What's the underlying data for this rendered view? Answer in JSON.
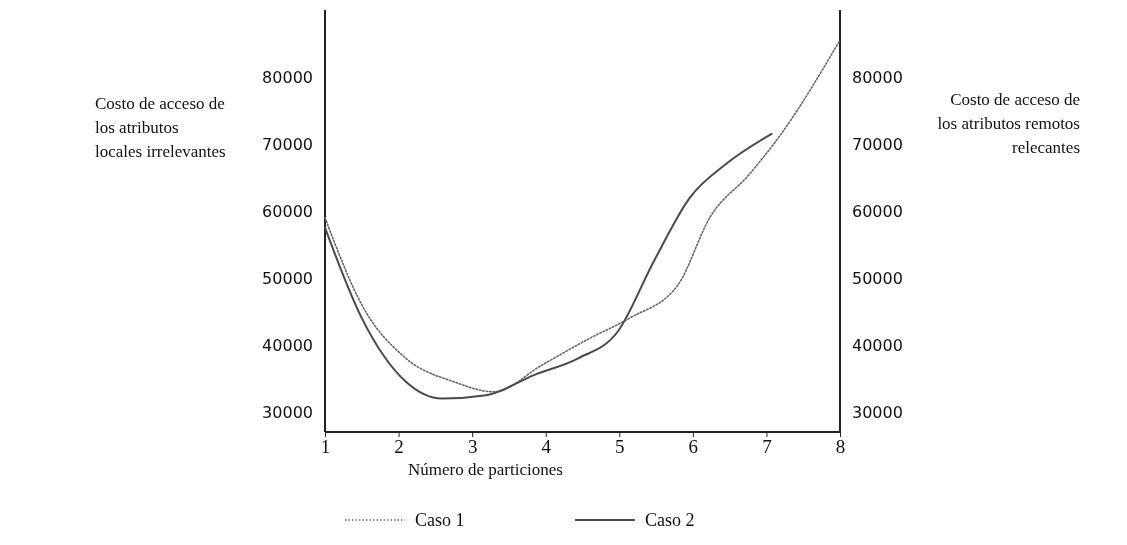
{
  "chart_data": {
    "type": "line",
    "xlabel": "Número de particiones",
    "ylabel": "Costo de acceso de los atributos locales irrelevantes",
    "y2label": "Costo de acceso de los atributos remotos relecantes",
    "xlim": [
      1,
      8
    ],
    "xticks": [
      1,
      2,
      3,
      4,
      5,
      6,
      7,
      8
    ],
    "ylim": [
      27000,
      90000
    ],
    "yticks": [
      30000,
      40000,
      50000,
      60000,
      70000,
      80000
    ],
    "y2lim": [
      27000,
      90000
    ],
    "y2ticks": [
      30000,
      40000,
      50000,
      60000,
      70000,
      80000
    ],
    "grid": false,
    "legend": "bottom",
    "marker": "none",
    "series": [
      {
        "name": "Caso 1",
        "color": "#666666",
        "line_style": "dotted",
        "x": [
          1,
          1.5,
          2.1,
          2.75,
          3.3,
          3.95,
          4.6,
          5.14,
          5.8,
          6.23,
          6.77,
          7.2,
          8
        ],
        "values": [
          59000,
          46000,
          38000,
          34500,
          33000,
          37000,
          41000,
          44000,
          49000,
          59000,
          65500,
          71500,
          85500
        ]
      },
      {
        "name": "Caso 2",
        "color": "#4a4a4a",
        "line_style": "solid",
        "x": [
          1,
          1.5,
          2.1,
          2.59,
          3.19,
          3.84,
          4.44,
          4.98,
          5.47,
          5.96,
          6.45,
          7.07
        ],
        "values": [
          57500,
          44000,
          34500,
          32000,
          32500,
          35500,
          38000,
          42000,
          52500,
          62000,
          67000,
          71500
        ]
      }
    ]
  }
}
